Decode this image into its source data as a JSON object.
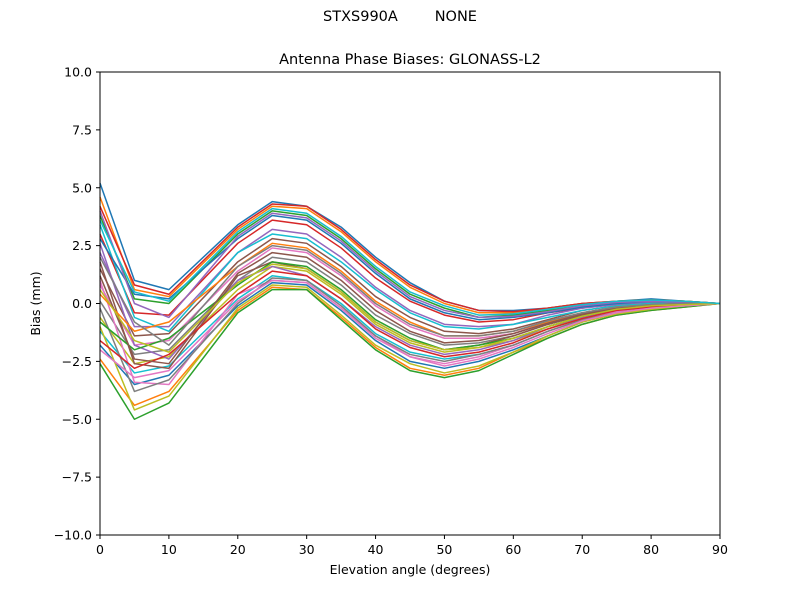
{
  "figure": {
    "suptitle": "STXS990A        NONE"
  },
  "chart_data": {
    "type": "line",
    "title": "Antenna Phase Biases: GLONASS-L2",
    "xlabel": "Elevation angle (degrees)",
    "ylabel": "Bias (mm)",
    "xlim": [
      0,
      90
    ],
    "ylim": [
      -10,
      10
    ],
    "xticks": [
      0,
      10,
      20,
      30,
      40,
      50,
      60,
      70,
      80,
      90
    ],
    "yticks": [
      -10.0,
      -7.5,
      -5.0,
      -2.5,
      0.0,
      2.5,
      5.0,
      7.5,
      10.0
    ],
    "xtick_labels": [
      "0",
      "10",
      "20",
      "30",
      "40",
      "50",
      "60",
      "70",
      "80",
      "90"
    ],
    "ytick_labels": [
      "−10.0",
      "−7.5",
      "−5.0",
      "−2.5",
      "0.0",
      "2.5",
      "5.0",
      "7.5",
      "10.0"
    ],
    "grid": false,
    "legend": "none",
    "colors": [
      "#1f77b4",
      "#ff7f0e",
      "#2ca02c",
      "#d62728",
      "#9467bd",
      "#8c564b",
      "#e377c2",
      "#7f7f7f",
      "#bcbd22",
      "#17becf"
    ],
    "x": [
      0,
      5,
      10,
      20,
      25,
      30,
      35,
      40,
      45,
      50,
      55,
      60,
      65,
      70,
      75,
      80,
      85,
      90
    ],
    "series": [
      {
        "values": [
          5.2,
          1.0,
          0.6,
          3.4,
          4.4,
          4.2,
          3.3,
          2.0,
          0.9,
          0.1,
          -0.3,
          -0.3,
          -0.2,
          0.0,
          0.1,
          0.2,
          0.1,
          0.0
        ]
      },
      {
        "values": [
          4.6,
          0.6,
          0.3,
          3.2,
          4.2,
          4.1,
          3.1,
          1.8,
          0.7,
          0.0,
          -0.4,
          -0.4,
          -0.2,
          0.0,
          0.1,
          0.15,
          0.1,
          0.0
        ]
      },
      {
        "values": [
          3.8,
          0.2,
          0.0,
          3.0,
          4.0,
          3.8,
          2.8,
          1.5,
          0.4,
          -0.2,
          -0.6,
          -0.5,
          -0.3,
          -0.1,
          0.1,
          0.15,
          0.1,
          0.0
        ]
      },
      {
        "values": [
          3.0,
          -0.4,
          -0.5,
          2.6,
          3.6,
          3.4,
          2.4,
          1.1,
          0.1,
          -0.5,
          -0.8,
          -0.7,
          -0.4,
          -0.2,
          0.0,
          0.1,
          0.05,
          0.0
        ]
      },
      {
        "values": [
          2.2,
          -1.0,
          -1.0,
          2.2,
          3.2,
          3.0,
          2.0,
          0.7,
          -0.3,
          -0.9,
          -1.0,
          -0.9,
          -0.5,
          -0.2,
          -0.05,
          0.05,
          0.0,
          0.0
        ]
      },
      {
        "values": [
          1.5,
          -1.4,
          -1.3,
          1.8,
          2.8,
          2.6,
          1.6,
          0.3,
          -0.6,
          -1.2,
          -1.3,
          -1.1,
          -0.7,
          -0.3,
          -0.1,
          0.0,
          0.0,
          0.0
        ]
      },
      {
        "values": [
          0.8,
          -1.8,
          -1.6,
          1.4,
          2.4,
          2.2,
          1.2,
          -0.1,
          -1.0,
          -1.5,
          -1.5,
          -1.3,
          -0.8,
          -0.4,
          -0.15,
          -0.05,
          0.0,
          0.0
        ]
      },
      {
        "values": [
          0.1,
          -2.2,
          -2.0,
          1.0,
          2.0,
          1.8,
          0.8,
          -0.5,
          -1.3,
          -1.8,
          -1.7,
          -1.4,
          -0.9,
          -0.5,
          -0.2,
          -0.1,
          -0.05,
          0.0
        ]
      },
      {
        "values": [
          -0.6,
          -2.6,
          -2.3,
          0.6,
          1.6,
          1.4,
          0.4,
          -0.9,
          -1.7,
          -2.1,
          -1.9,
          -1.6,
          -1.1,
          -0.6,
          -0.3,
          -0.15,
          -0.05,
          0.0
        ]
      },
      {
        "values": [
          -1.2,
          -3.0,
          -2.7,
          0.2,
          1.2,
          1.0,
          0.0,
          -1.3,
          -2.1,
          -2.4,
          -2.2,
          -1.8,
          -1.2,
          -0.7,
          -0.35,
          -0.2,
          -0.1,
          0.0
        ]
      },
      {
        "values": [
          -1.8,
          -3.5,
          -3.1,
          -0.1,
          0.9,
          0.8,
          -0.3,
          -1.6,
          -2.5,
          -2.8,
          -2.5,
          -2.0,
          -1.4,
          -0.8,
          -0.4,
          -0.25,
          -0.1,
          0.0
        ]
      },
      {
        "values": [
          -2.4,
          -4.4,
          -3.8,
          -0.3,
          0.7,
          0.6,
          -0.6,
          -1.9,
          -2.8,
          -3.1,
          -2.8,
          -2.1,
          -1.5,
          -0.9,
          -0.5,
          -0.3,
          -0.15,
          0.0
        ]
      },
      {
        "values": [
          -2.6,
          -5.0,
          -4.3,
          -0.4,
          0.6,
          0.6,
          -0.7,
          -2.0,
          -2.9,
          -3.2,
          -2.9,
          -2.2,
          -1.5,
          -0.9,
          -0.5,
          -0.3,
          -0.15,
          0.0
        ]
      },
      {
        "values": [
          4.2,
          0.8,
          0.4,
          3.3,
          4.3,
          4.2,
          3.2,
          1.9,
          0.8,
          0.1,
          -0.3,
          -0.35,
          -0.2,
          0.0,
          0.1,
          0.15,
          0.1,
          0.0
        ]
      },
      {
        "values": [
          2.6,
          -1.8,
          -2.4,
          1.0,
          1.6,
          1.2,
          0.2,
          -1.0,
          -1.8,
          -2.2,
          -2.0,
          -1.6,
          -1.0,
          -0.6,
          -0.3,
          -0.15,
          -0.05,
          0.0
        ]
      },
      {
        "values": [
          1.8,
          -2.6,
          -2.8,
          1.2,
          1.8,
          1.5,
          0.5,
          -0.8,
          -1.6,
          -2.0,
          -1.8,
          -1.4,
          -0.9,
          -0.5,
          -0.25,
          -0.1,
          -0.05,
          0.0
        ]
      },
      {
        "values": [
          1.0,
          -3.4,
          -3.5,
          0.4,
          1.0,
          0.9,
          -0.2,
          -1.4,
          -2.3,
          -2.6,
          -2.3,
          -1.8,
          -1.2,
          -0.7,
          -0.35,
          -0.2,
          -0.1,
          0.0
        ]
      },
      {
        "values": [
          -0.2,
          -3.8,
          -3.3,
          0.0,
          1.1,
          1.0,
          -0.1,
          -1.4,
          -2.2,
          -2.5,
          -2.2,
          -1.8,
          -1.2,
          -0.7,
          -0.4,
          -0.2,
          -0.1,
          0.0
        ]
      },
      {
        "values": [
          -1.0,
          -4.6,
          -4.0,
          -0.2,
          0.8,
          0.7,
          -0.5,
          -1.8,
          -2.6,
          -3.0,
          -2.7,
          -2.1,
          -1.4,
          -0.8,
          -0.45,
          -0.25,
          -0.1,
          0.0
        ]
      },
      {
        "values": [
          3.4,
          -0.6,
          -1.2,
          2.2,
          3.0,
          2.8,
          1.8,
          0.6,
          -0.4,
          -1.0,
          -1.1,
          -0.9,
          -0.6,
          -0.3,
          -0.1,
          0.0,
          0.0,
          0.0
        ]
      },
      {
        "values": [
          2.8,
          0.4,
          0.2,
          2.8,
          3.8,
          3.6,
          2.6,
          1.3,
          0.2,
          -0.4,
          -0.7,
          -0.6,
          -0.4,
          -0.15,
          0.0,
          0.1,
          0.05,
          0.0
        ]
      },
      {
        "values": [
          0.4,
          -1.2,
          -0.8,
          1.6,
          2.6,
          2.4,
          1.4,
          0.1,
          -0.8,
          -1.4,
          -1.4,
          -1.2,
          -0.8,
          -0.4,
          -0.15,
          -0.05,
          0.0,
          0.0
        ]
      },
      {
        "values": [
          -0.8,
          -2.0,
          -1.5,
          0.8,
          1.8,
          1.6,
          0.6,
          -0.7,
          -1.5,
          -2.0,
          -1.8,
          -1.5,
          -1.0,
          -0.55,
          -0.25,
          -0.1,
          -0.05,
          0.0
        ]
      },
      {
        "values": [
          -1.6,
          -2.8,
          -2.2,
          0.4,
          1.4,
          1.2,
          0.2,
          -1.1,
          -1.9,
          -2.3,
          -2.1,
          -1.7,
          -1.1,
          -0.65,
          -0.3,
          -0.15,
          -0.05,
          0.0
        ]
      },
      {
        "values": [
          4.0,
          0.0,
          -0.6,
          2.9,
          3.9,
          3.7,
          2.7,
          1.4,
          0.3,
          -0.3,
          -0.6,
          -0.55,
          -0.35,
          -0.1,
          0.05,
          0.1,
          0.05,
          0.0
        ]
      },
      {
        "values": [
          1.2,
          -2.4,
          -2.6,
          1.3,
          2.2,
          2.0,
          1.0,
          -0.3,
          -1.2,
          -1.7,
          -1.6,
          -1.3,
          -0.85,
          -0.45,
          -0.2,
          -0.05,
          0.0,
          0.0
        ]
      },
      {
        "values": [
          -2.0,
          -3.2,
          -2.9,
          0.1,
          1.0,
          0.9,
          -0.2,
          -1.5,
          -2.3,
          -2.7,
          -2.4,
          -1.9,
          -1.3,
          -0.75,
          -0.4,
          -0.2,
          -0.1,
          0.0
        ]
      },
      {
        "values": [
          2.0,
          -0.8,
          -1.8,
          1.6,
          2.5,
          2.3,
          1.3,
          0.0,
          -0.9,
          -1.4,
          -1.4,
          -1.2,
          -0.75,
          -0.4,
          -0.15,
          -0.05,
          0.0,
          0.0
        ]
      },
      {
        "values": [
          0.6,
          -1.6,
          -2.1,
          0.9,
          1.7,
          1.5,
          0.5,
          -0.8,
          -1.6,
          -2.0,
          -1.9,
          -1.5,
          -1.0,
          -0.55,
          -0.25,
          -0.1,
          -0.05,
          0.0
        ]
      },
      {
        "values": [
          3.6,
          0.5,
          0.1,
          3.1,
          4.1,
          3.9,
          2.9,
          1.6,
          0.5,
          -0.1,
          -0.5,
          -0.45,
          -0.25,
          -0.05,
          0.1,
          0.15,
          0.1,
          0.0
        ]
      }
    ]
  }
}
